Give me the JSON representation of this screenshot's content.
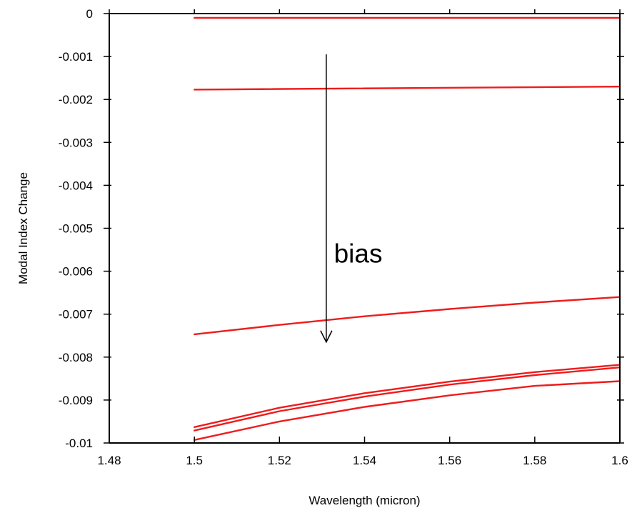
{
  "chart_data": {
    "type": "line",
    "title": "",
    "xlabel": "Wavelength (micron)",
    "ylabel": "Modal Index Change",
    "xlim": [
      1.48,
      1.6
    ],
    "ylim": [
      -0.01,
      0
    ],
    "x_ticks": [
      "1.48",
      "1.5",
      "1.52",
      "1.54",
      "1.56",
      "1.58",
      "1.6"
    ],
    "y_ticks": [
      "0",
      "-0.001",
      "-0.002",
      "-0.003",
      "-0.004",
      "-0.005",
      "-0.006",
      "-0.007",
      "-0.008",
      "-0.009",
      "-0.01"
    ],
    "grid": false,
    "line_color": "#ee1c1c",
    "series": [
      {
        "x": [
          1.5,
          1.6
        ],
        "y": [
          -0.0001,
          -0.0001
        ]
      },
      {
        "x": [
          1.5,
          1.6
        ],
        "y": [
          -0.00177,
          -0.0017
        ]
      },
      {
        "x": [
          1.5,
          1.52,
          1.54,
          1.56,
          1.58,
          1.6
        ],
        "y": [
          -0.00747,
          -0.00725,
          -0.00705,
          -0.00688,
          -0.00673,
          -0.0066
        ]
      },
      {
        "x": [
          1.5,
          1.52,
          1.54,
          1.56,
          1.58,
          1.6
        ],
        "y": [
          -0.00963,
          -0.00918,
          -0.00884,
          -0.00857,
          -0.00835,
          -0.00818
        ]
      },
      {
        "x": [
          1.5,
          1.52,
          1.54,
          1.56,
          1.58,
          1.6
        ],
        "y": [
          -0.00971,
          -0.00926,
          -0.00892,
          -0.00864,
          -0.00842,
          -0.00824
        ]
      },
      {
        "x": [
          1.5,
          1.52,
          1.54,
          1.56,
          1.58,
          1.6
        ],
        "y": [
          -0.00993,
          -0.0095,
          -0.00916,
          -0.00889,
          -0.00867,
          -0.00856
        ]
      }
    ],
    "annotations": [
      {
        "text": "bias",
        "x": 1.5385,
        "y": -0.0058
      }
    ],
    "arrow": {
      "x": 1.531,
      "y_start": -0.00095,
      "y_end": -0.00765
    }
  }
}
